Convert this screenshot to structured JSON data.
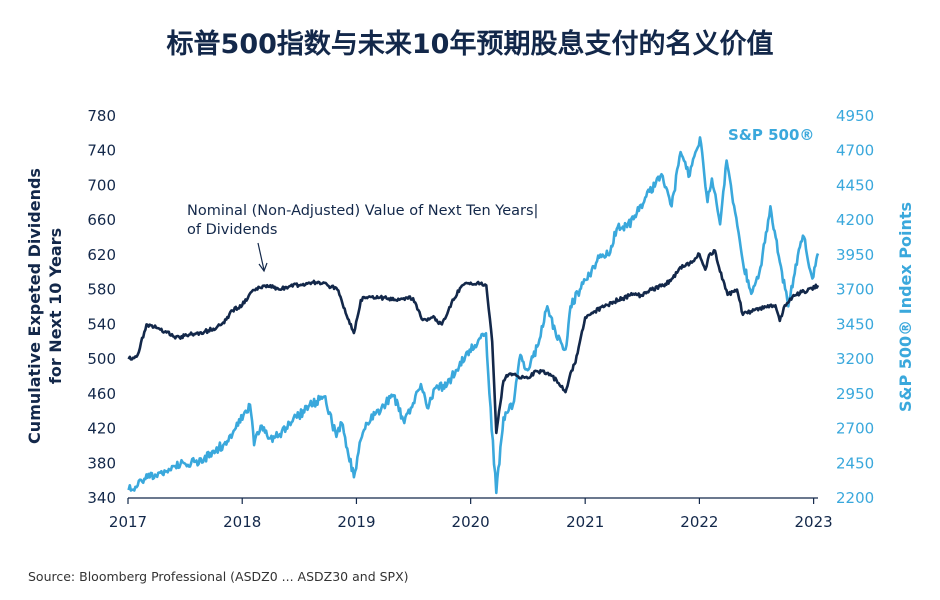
{
  "title": "标普500指数与未来10年预期股息支付的名义价值",
  "source": "Source:  Bloomberg Professional (ASDZ0 ... ASDZ30 and SPX)",
  "colors": {
    "dividends": "#13284a",
    "sp500": "#3aa8dc",
    "axis": "#13284a"
  },
  "chart_data": {
    "type": "line",
    "xlabel": "",
    "x_ticks": [
      "2017",
      "2018",
      "2019",
      "2020",
      "2021",
      "2022",
      "2023"
    ],
    "xlim": [
      "2017-01-01",
      "2023-01-15"
    ],
    "left_axis": {
      "label_line1": "Cumulative Expeted Dividends",
      "label_line2": "for Next 10 Years",
      "ylim": [
        340,
        780
      ],
      "ticks": [
        "780",
        "740",
        "700",
        "660",
        "620",
        "580",
        "540",
        "500",
        "460",
        "420",
        "380",
        "340"
      ]
    },
    "right_axis": {
      "label": "S&P 500® Index Points",
      "ylim": [
        2200,
        4950
      ],
      "ticks": [
        "4950",
        "4700",
        "4450",
        "4200",
        "3950",
        "3700",
        "3450",
        "3200",
        "2950",
        "2700",
        "2450",
        "2200"
      ]
    },
    "grid": false,
    "annotations": {
      "dividends_line1": "Nominal (Non-Adjusted) Value of Next Ten Years|",
      "dividends_line2": "of Dividends",
      "sp500_label": "S&P 500®"
    },
    "series": [
      {
        "name": "Nominal (Non-Adjusted) Value of Next Ten Years of Dividends",
        "axis": "left",
        "points": [
          [
            "2017-01-03",
            500
          ],
          [
            "2017-02-01",
            505
          ],
          [
            "2017-03-01",
            540
          ],
          [
            "2017-04-01",
            536
          ],
          [
            "2017-05-01",
            532
          ],
          [
            "2017-06-01",
            524
          ],
          [
            "2017-07-01",
            527
          ],
          [
            "2017-08-01",
            529
          ],
          [
            "2017-09-01",
            531
          ],
          [
            "2017-10-01",
            535
          ],
          [
            "2017-11-01",
            542
          ],
          [
            "2017-12-01",
            556
          ],
          [
            "2018-01-01",
            562
          ],
          [
            "2018-02-01",
            578
          ],
          [
            "2018-03-01",
            582
          ],
          [
            "2018-04-01",
            585
          ],
          [
            "2018-05-01",
            580
          ],
          [
            "2018-06-01",
            584
          ],
          [
            "2018-07-01",
            585
          ],
          [
            "2018-08-01",
            588
          ],
          [
            "2018-09-01",
            589
          ],
          [
            "2018-10-01",
            585
          ],
          [
            "2018-11-01",
            580
          ],
          [
            "2018-12-01",
            550
          ],
          [
            "2018-12-24",
            530
          ],
          [
            "2019-01-15",
            568
          ],
          [
            "2019-02-01",
            571
          ],
          [
            "2019-03-01",
            570
          ],
          [
            "2019-04-01",
            571
          ],
          [
            "2019-05-01",
            568
          ],
          [
            "2019-06-01",
            570
          ],
          [
            "2019-07-01",
            570
          ],
          [
            "2019-08-01",
            545
          ],
          [
            "2019-09-01",
            548
          ],
          [
            "2019-10-01",
            540
          ],
          [
            "2019-11-01",
            565
          ],
          [
            "2019-12-01",
            583
          ],
          [
            "2020-01-01",
            588
          ],
          [
            "2020-02-01",
            587
          ],
          [
            "2020-02-20",
            585
          ],
          [
            "2020-03-10",
            520
          ],
          [
            "2020-03-23",
            415
          ],
          [
            "2020-04-01",
            440
          ],
          [
            "2020-04-15",
            475
          ],
          [
            "2020-05-01",
            482
          ],
          [
            "2020-06-01",
            480
          ],
          [
            "2020-07-01",
            478
          ],
          [
            "2020-08-01",
            486
          ],
          [
            "2020-09-01",
            484
          ],
          [
            "2020-10-01",
            476
          ],
          [
            "2020-10-30",
            462
          ],
          [
            "2020-11-15",
            484
          ],
          [
            "2020-12-01",
            496
          ],
          [
            "2021-01-01",
            548
          ],
          [
            "2021-02-01",
            555
          ],
          [
            "2021-03-01",
            560
          ],
          [
            "2021-04-01",
            566
          ],
          [
            "2021-05-01",
            570
          ],
          [
            "2021-06-01",
            574
          ],
          [
            "2021-07-01",
            573
          ],
          [
            "2021-08-01",
            580
          ],
          [
            "2021-09-01",
            584
          ],
          [
            "2021-10-01",
            590
          ],
          [
            "2021-11-01",
            606
          ],
          [
            "2021-12-01",
            610
          ],
          [
            "2022-01-01",
            621
          ],
          [
            "2022-01-20",
            603
          ],
          [
            "2022-02-01",
            620
          ],
          [
            "2022-02-20",
            625
          ],
          [
            "2022-03-01",
            610
          ],
          [
            "2022-04-01",
            574
          ],
          [
            "2022-05-01",
            580
          ],
          [
            "2022-05-20",
            551
          ],
          [
            "2022-06-15",
            555
          ],
          [
            "2022-07-01",
            558
          ],
          [
            "2022-08-01",
            560
          ],
          [
            "2022-09-01",
            562
          ],
          [
            "2022-09-15",
            544
          ],
          [
            "2022-10-01",
            562
          ],
          [
            "2022-11-01",
            573
          ],
          [
            "2022-12-01",
            578
          ],
          [
            "2023-01-15",
            585
          ]
        ]
      },
      {
        "name": "S&P 500®",
        "axis": "right",
        "points": [
          [
            "2017-01-03",
            2257
          ],
          [
            "2017-02-01",
            2290
          ],
          [
            "2017-03-01",
            2370
          ],
          [
            "2017-04-01",
            2360
          ],
          [
            "2017-05-01",
            2390
          ],
          [
            "2017-06-01",
            2430
          ],
          [
            "2017-07-01",
            2450
          ],
          [
            "2017-08-01",
            2460
          ],
          [
            "2017-09-01",
            2480
          ],
          [
            "2017-10-01",
            2540
          ],
          [
            "2017-11-01",
            2580
          ],
          [
            "2017-12-01",
            2660
          ],
          [
            "2018-01-26",
            2872
          ],
          [
            "2018-02-08",
            2580
          ],
          [
            "2018-03-01",
            2720
          ],
          [
            "2018-04-01",
            2630
          ],
          [
            "2018-05-01",
            2660
          ],
          [
            "2018-06-01",
            2740
          ],
          [
            "2018-07-01",
            2790
          ],
          [
            "2018-08-01",
            2860
          ],
          [
            "2018-09-20",
            2930
          ],
          [
            "2018-10-29",
            2640
          ],
          [
            "2018-11-15",
            2740
          ],
          [
            "2018-12-24",
            2350
          ],
          [
            "2019-01-15",
            2620
          ],
          [
            "2019-02-01",
            2740
          ],
          [
            "2019-03-01",
            2800
          ],
          [
            "2019-04-30",
            2940
          ],
          [
            "2019-06-03",
            2740
          ],
          [
            "2019-07-26",
            3020
          ],
          [
            "2019-08-15",
            2850
          ],
          [
            "2019-09-15",
            3010
          ],
          [
            "2019-10-15",
            3000
          ],
          [
            "2019-11-15",
            3120
          ],
          [
            "2019-12-15",
            3220
          ],
          [
            "2020-01-15",
            3300
          ],
          [
            "2020-02-19",
            3386
          ],
          [
            "2020-03-01",
            2950
          ],
          [
            "2020-03-23",
            2237
          ],
          [
            "2020-04-15",
            2780
          ],
          [
            "2020-05-15",
            2870
          ],
          [
            "2020-06-08",
            3230
          ],
          [
            "2020-07-01",
            3120
          ],
          [
            "2020-08-01",
            3290
          ],
          [
            "2020-09-02",
            3580
          ],
          [
            "2020-10-01",
            3360
          ],
          [
            "2020-10-30",
            3270
          ],
          [
            "2020-11-15",
            3580
          ],
          [
            "2020-12-15",
            3700
          ],
          [
            "2021-01-15",
            3800
          ],
          [
            "2021-02-15",
            3930
          ],
          [
            "2021-03-15",
            3950
          ],
          [
            "2021-04-15",
            4150
          ],
          [
            "2021-05-15",
            4150
          ],
          [
            "2021-06-15",
            4250
          ],
          [
            "2021-07-15",
            4370
          ],
          [
            "2021-08-15",
            4470
          ],
          [
            "2021-09-02",
            4530
          ],
          [
            "2021-10-04",
            4300
          ],
          [
            "2021-11-02",
            4690
          ],
          [
            "2021-12-01",
            4520
          ],
          [
            "2022-01-03",
            4796
          ],
          [
            "2022-01-27",
            4330
          ],
          [
            "2022-02-10",
            4500
          ],
          [
            "2022-03-08",
            4170
          ],
          [
            "2022-03-29",
            4630
          ],
          [
            "2022-04-15",
            4390
          ],
          [
            "2022-05-20",
            3900
          ],
          [
            "2022-06-16",
            3670
          ],
          [
            "2022-07-15",
            3860
          ],
          [
            "2022-08-16",
            4300
          ],
          [
            "2022-09-15",
            3900
          ],
          [
            "2022-10-12",
            3580
          ],
          [
            "2022-11-15",
            3990
          ],
          [
            "2022-12-01",
            4080
          ],
          [
            "2022-12-28",
            3780
          ],
          [
            "2023-01-10",
            3920
          ],
          [
            "2023-01-15",
            3960
          ]
        ]
      }
    ]
  }
}
